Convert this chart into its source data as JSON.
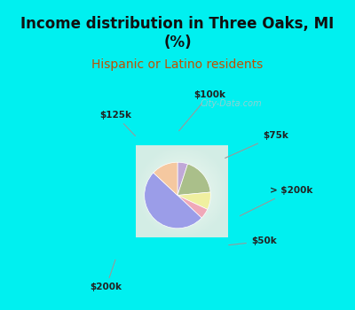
{
  "title": "Income distribution in Three Oaks, MI\n(%)",
  "subtitle": "Hispanic or Latino residents",
  "labels": [
    "$200k",
    "$50k",
    "> $200k",
    "$75k",
    "$100k",
    "$125k"
  ],
  "values": [
    50.0,
    5.0,
    8.5,
    18.5,
    5.0,
    13.0
  ],
  "colors": [
    "#9b9de8",
    "#f0a8b8",
    "#f0f0a0",
    "#aabf8a",
    "#c0a8d8",
    "#f5c8a0"
  ],
  "startangle": 90,
  "bg_cyan": "#00f0f0",
  "bg_chart": "#dff0e8",
  "title_fontsize": 12,
  "subtitle_color": "#c05000",
  "subtitle_fontsize": 10,
  "watermark": "City-Data.com",
  "watermark_color": "#aacccc"
}
